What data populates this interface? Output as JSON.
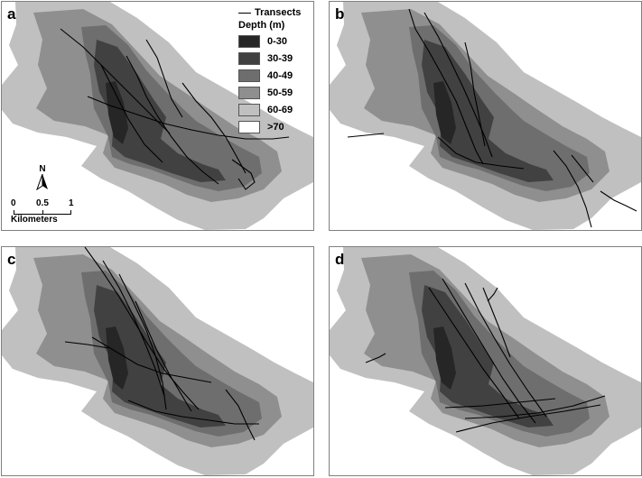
{
  "panels": [
    {
      "letter": "a"
    },
    {
      "letter": "b"
    },
    {
      "letter": "c"
    },
    {
      "letter": "d"
    }
  ],
  "legend": {
    "transects_label": "Transects",
    "depth_title": "Depth (m)",
    "classes": [
      {
        "label": "0-30",
        "color": "#262626"
      },
      {
        "label": "30-39",
        "color": "#414141"
      },
      {
        "label": "40-49",
        "color": "#6e6e6e"
      },
      {
        "label": "50-59",
        "color": "#8f8f8f"
      },
      {
        "label": "60-69",
        "color": "#c0c0c0"
      },
      {
        "label": ">70",
        "color": "#ffffff"
      }
    ]
  },
  "north_arrow": {
    "label": "N"
  },
  "scale_bar": {
    "ticks": [
      "0",
      "0.5",
      "1"
    ],
    "unit": "Kilometers"
  }
}
